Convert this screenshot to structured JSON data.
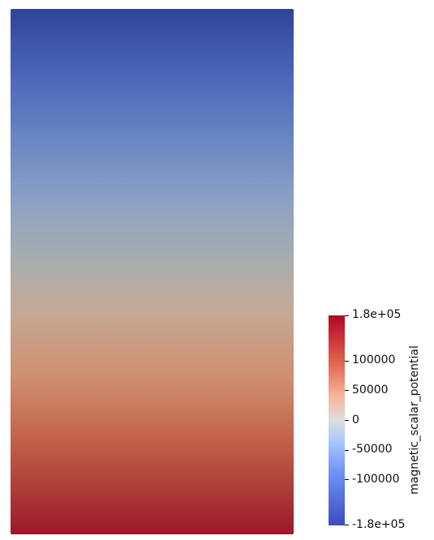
{
  "colorbar": {
    "title": "magnetic_scalar_potential",
    "labels": {
      "max": "1.8e+05",
      "t100000": "100000",
      "t50000": "50000",
      "t0": "0",
      "tm50000": "-50000",
      "tm100000": "-100000",
      "min": "-1.8e+05"
    },
    "range": [
      -180000,
      180000
    ],
    "colormap": "cool-to-warm",
    "colors": {
      "min": "#3b4cc0",
      "mid": "#dddddd",
      "max": "#b40426"
    }
  }
}
